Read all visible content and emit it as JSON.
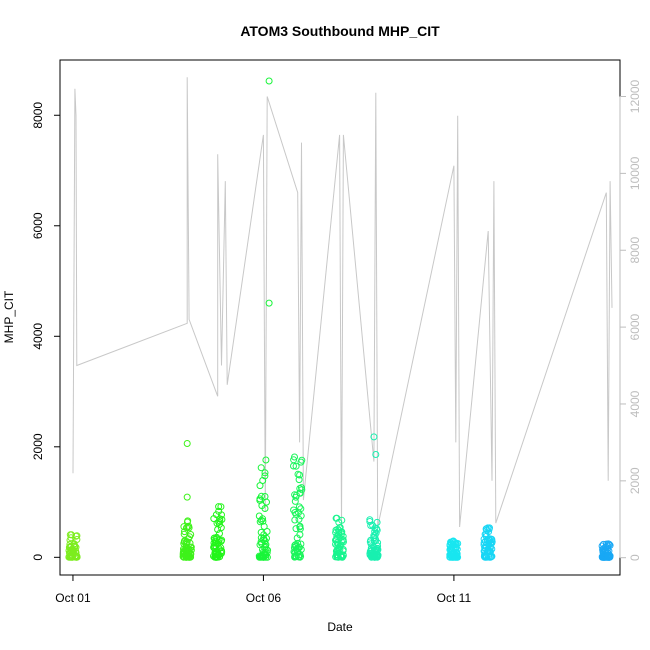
{
  "chart_data": {
    "type": "scatter",
    "title": "ATOM3 Southbound MHP_CIT",
    "xlabel": "Date",
    "ylabel": "MHP_CIT",
    "x_ticks": [
      "Oct 01",
      "Oct 06",
      "Oct 11"
    ],
    "x_tick_days": [
      1,
      6,
      11
    ],
    "xlim": [
      0.66,
      15.36
    ],
    "ylim": [
      -320,
      9000
    ],
    "y_ticks": [
      0,
      2000,
      4000,
      6000,
      8000
    ],
    "y2lim": [
      -450,
      12950
    ],
    "y2_ticks": [
      0,
      2000,
      4000,
      6000,
      8000,
      10000,
      12000
    ],
    "grid": false,
    "legend": "none",
    "point_color_ramp": [
      "#86ee00",
      "#19ff00",
      "#00ff5e",
      "#00f0e8",
      "#009fff"
    ],
    "line_color": "#c8c8c8",
    "point_clusters": [
      {
        "day": 1.0,
        "max": 450,
        "color": "#7ded1f"
      },
      {
        "day": 4.0,
        "max": 700,
        "color": "#3ef21a"
      },
      {
        "day": 4.8,
        "max": 1000,
        "color": "#22f51a"
      },
      {
        "day": 6.0,
        "max": 1900,
        "color": "#19f53a"
      },
      {
        "day": 6.9,
        "max": 1850,
        "color": "#19f55a"
      },
      {
        "day": 8.0,
        "max": 750,
        "color": "#19f58f"
      },
      {
        "day": 8.9,
        "max": 700,
        "color": "#19f0b0"
      },
      {
        "day": 11.0,
        "max": 300,
        "color": "#19e6f0"
      },
      {
        "day": 11.9,
        "max": 550,
        "color": "#19d6f5"
      },
      {
        "day": 15.0,
        "max": 250,
        "color": "#19a8f5"
      }
    ],
    "outliers": [
      {
        "day": 6.15,
        "value": 8620
      },
      {
        "day": 6.15,
        "value": 4600
      },
      {
        "day": 4.0,
        "value": 2060
      },
      {
        "day": 4.0,
        "value": 1090
      },
      {
        "day": 8.9,
        "value": 2180
      },
      {
        "day": 8.95,
        "value": 1860
      }
    ],
    "line_series": [
      [
        1.0,
        2200
      ],
      [
        1.05,
        12200
      ],
      [
        1.08,
        11500
      ],
      [
        1.1,
        5000
      ],
      [
        4.0,
        6100
      ],
      [
        4.0,
        12500
      ],
      [
        4.05,
        6200
      ],
      [
        4.8,
        4200
      ],
      [
        4.8,
        10500
      ],
      [
        4.9,
        5000
      ],
      [
        5.0,
        9800
      ],
      [
        5.05,
        4500
      ],
      [
        6.0,
        11000
      ],
      [
        6.05,
        1200
      ],
      [
        6.1,
        12000
      ],
      [
        6.9,
        9500
      ],
      [
        6.95,
        3000
      ],
      [
        7.0,
        10800
      ],
      [
        7.05,
        1500
      ],
      [
        8.0,
        11000
      ],
      [
        8.05,
        800
      ],
      [
        8.1,
        11000
      ],
      [
        8.9,
        2500
      ],
      [
        8.95,
        12100
      ],
      [
        9.0,
        800
      ],
      [
        11.0,
        10200
      ],
      [
        11.05,
        3000
      ],
      [
        11.1,
        11500
      ],
      [
        11.15,
        800
      ],
      [
        11.9,
        8500
      ],
      [
        12.0,
        2000
      ],
      [
        12.05,
        9800
      ],
      [
        12.1,
        900
      ],
      [
        15.0,
        9500
      ],
      [
        15.05,
        2000
      ],
      [
        15.1,
        9800
      ],
      [
        15.15,
        6500
      ]
    ]
  }
}
